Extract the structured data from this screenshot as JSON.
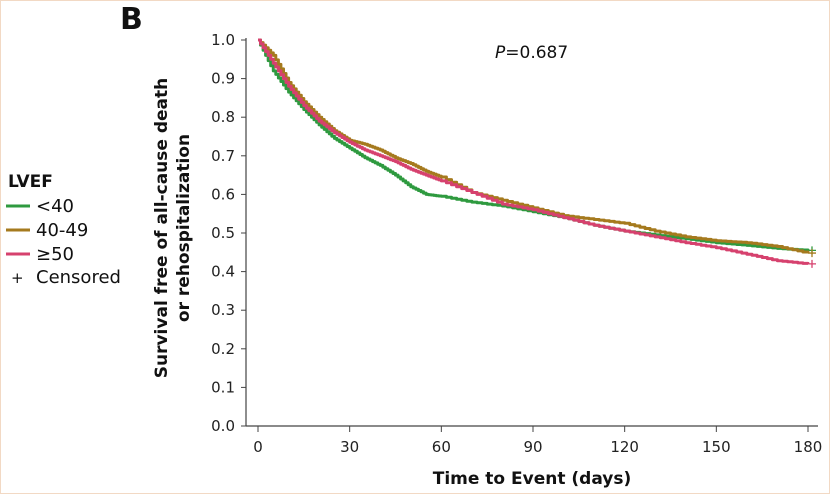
{
  "panel_label": "B",
  "chart_data": {
    "type": "line",
    "title": "",
    "xlabel": "Time to Event (days)",
    "ylabel_line1": "Survival free of all-cause death",
    "ylabel_line2": "or rehospitalization",
    "xlim": [
      0,
      182
    ],
    "ylim": [
      0,
      1.0
    ],
    "x_ticks": [
      0,
      30,
      60,
      90,
      120,
      150,
      180
    ],
    "y_ticks": [
      0.0,
      0.1,
      0.2,
      0.3,
      0.4,
      0.5,
      0.6,
      0.7,
      0.8,
      0.9,
      1.0
    ],
    "x_tick_labels": [
      "0",
      "30",
      "60",
      "90",
      "120",
      "150",
      "180"
    ],
    "y_tick_labels": [
      "0.0",
      "0.1",
      "0.2",
      "0.3",
      "0.4",
      "0.5",
      "0.6",
      "0.7",
      "0.8",
      "0.9",
      "1.0"
    ],
    "annotation": {
      "p_symbol": "P",
      "p_text": "=0.687"
    },
    "legend": {
      "title": "LVEF",
      "placement": "left",
      "entries": [
        "<40",
        "40-49",
        "≥50"
      ],
      "censored_symbol": "+",
      "censored_label": "Censored"
    },
    "series": [
      {
        "name": "<40",
        "color": "#2e9a3f",
        "x": [
          0,
          5,
          10,
          15,
          20,
          25,
          30,
          35,
          40,
          45,
          50,
          55,
          60,
          70,
          80,
          90,
          100,
          110,
          120,
          130,
          140,
          150,
          160,
          170,
          180
        ],
        "y": [
          1.0,
          0.92,
          0.865,
          0.82,
          0.78,
          0.745,
          0.72,
          0.695,
          0.675,
          0.65,
          0.62,
          0.6,
          0.595,
          0.58,
          0.57,
          0.555,
          0.54,
          0.52,
          0.505,
          0.495,
          0.485,
          0.475,
          0.468,
          0.46,
          0.455
        ]
      },
      {
        "name": "40-49",
        "color": "#a57a1e",
        "x": [
          0,
          5,
          10,
          15,
          20,
          25,
          30,
          35,
          40,
          45,
          50,
          55,
          60,
          70,
          80,
          90,
          100,
          110,
          120,
          130,
          140,
          150,
          160,
          170,
          180
        ],
        "y": [
          1.0,
          0.96,
          0.89,
          0.84,
          0.8,
          0.765,
          0.74,
          0.73,
          0.715,
          0.695,
          0.68,
          0.66,
          0.645,
          0.605,
          0.585,
          0.565,
          0.545,
          0.535,
          0.525,
          0.505,
          0.49,
          0.48,
          0.475,
          0.465,
          0.448
        ]
      },
      {
        "name": "≥50",
        "color": "#d6416e",
        "x": [
          0,
          5,
          10,
          15,
          20,
          25,
          30,
          35,
          40,
          45,
          50,
          55,
          60,
          70,
          80,
          90,
          100,
          110,
          120,
          130,
          140,
          150,
          160,
          170,
          180
        ],
        "y": [
          1.0,
          0.94,
          0.88,
          0.83,
          0.79,
          0.76,
          0.735,
          0.715,
          0.7,
          0.685,
          0.665,
          0.65,
          0.635,
          0.605,
          0.575,
          0.56,
          0.54,
          0.52,
          0.505,
          0.49,
          0.475,
          0.462,
          0.445,
          0.428,
          0.42
        ]
      }
    ]
  }
}
